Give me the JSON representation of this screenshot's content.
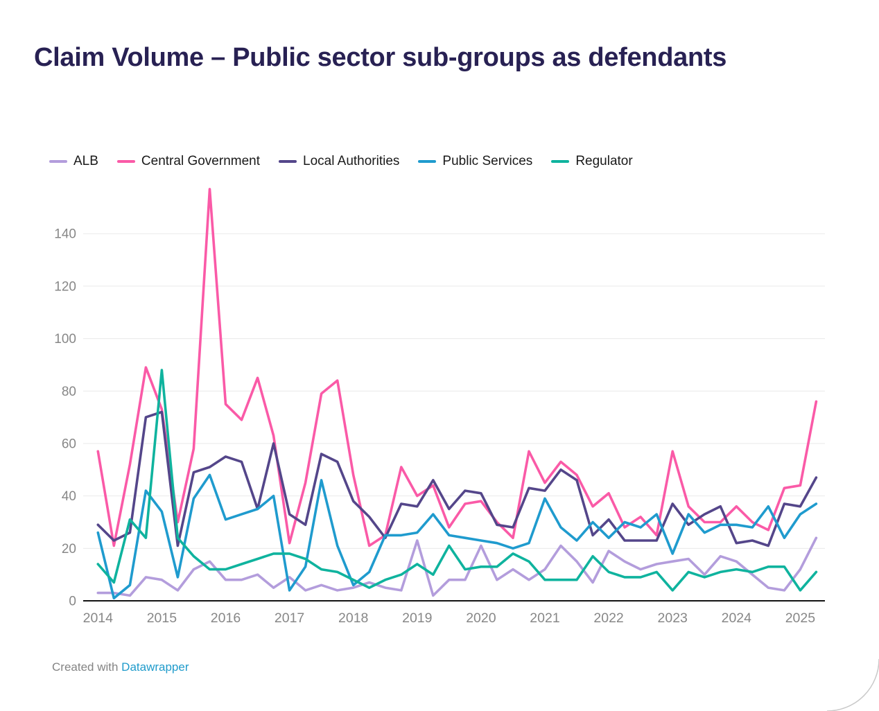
{
  "title": "Claim Volume – Public sector sub-groups as defendants",
  "footer": {
    "prefix": "Created with ",
    "link_label": "Datawrapper"
  },
  "colors": {
    "background": "#ffffff",
    "title_text": "#282153",
    "tick_text": "#878787",
    "gridline": "#e9e9e9",
    "axis_line": "#121212",
    "legend_text": "#1a1a1a",
    "footer_text": "#848484",
    "footer_link": "#1f9bcb",
    "corner_arc": "#c9c9c9"
  },
  "chart_data": {
    "type": "line",
    "title": "Claim Volume – Public sector sub-groups as defendants",
    "xlabel": "",
    "ylabel": "",
    "x_start": 2014.0,
    "x_step": 0.25,
    "x_ticks": [
      2014,
      2015,
      2016,
      2017,
      2018,
      2019,
      2020,
      2021,
      2022,
      2023,
      2024,
      2025
    ],
    "ylim": [
      0,
      160
    ],
    "yticks": [
      0,
      20,
      40,
      60,
      80,
      100,
      120,
      140
    ],
    "grid": "horizontal",
    "legend_position": "top",
    "series": [
      {
        "name": "ALB",
        "color": "#b39ddc",
        "values": [
          3,
          3,
          2,
          9,
          8,
          4,
          12,
          15,
          8,
          8,
          10,
          5,
          9,
          4,
          6,
          4,
          5,
          7,
          5,
          4,
          23,
          2,
          8,
          8,
          21,
          8,
          12,
          8,
          12,
          21,
          15,
          7,
          19,
          15,
          12,
          14,
          15,
          16,
          10,
          17,
          15,
          10,
          5,
          4,
          12,
          24
        ]
      },
      {
        "name": "Central Government",
        "color": "#fa5aa7",
        "values": [
          57,
          21,
          52,
          89,
          73,
          30,
          58,
          157,
          75,
          69,
          85,
          63,
          22,
          45,
          79,
          84,
          48,
          21,
          25,
          51,
          40,
          44,
          28,
          37,
          38,
          30,
          24,
          57,
          45,
          53,
          48,
          36,
          41,
          28,
          32,
          25,
          57,
          36,
          30,
          30,
          36,
          30,
          27,
          43,
          44,
          76
        ]
      },
      {
        "name": "Local Authorities",
        "color": "#54468a",
        "values": [
          29,
          23,
          26,
          70,
          72,
          21,
          49,
          51,
          55,
          53,
          35,
          60,
          33,
          29,
          56,
          53,
          38,
          32,
          24,
          37,
          36,
          46,
          35,
          42,
          41,
          29,
          28,
          43,
          42,
          50,
          46,
          25,
          31,
          23,
          23,
          23,
          37,
          29,
          33,
          36,
          22,
          23,
          21,
          37,
          36,
          47
        ]
      },
      {
        "name": "Public Services",
        "color": "#1f9bce",
        "values": [
          26,
          1,
          6,
          42,
          34,
          9,
          39,
          48,
          31,
          33,
          35,
          40,
          4,
          13,
          46,
          21,
          6,
          11,
          25,
          25,
          26,
          33,
          25,
          24,
          23,
          22,
          20,
          22,
          39,
          28,
          23,
          30,
          24,
          30,
          28,
          33,
          18,
          33,
          26,
          29,
          29,
          28,
          36,
          24,
          33,
          37
        ]
      },
      {
        "name": "Regulator",
        "color": "#0fb39e",
        "values": [
          14,
          7,
          31,
          24,
          88,
          24,
          17,
          12,
          12,
          14,
          16,
          18,
          18,
          16,
          12,
          11,
          8,
          5,
          8,
          10,
          14,
          10,
          21,
          12,
          13,
          13,
          18,
          15,
          8,
          8,
          8,
          17,
          11,
          9,
          9,
          11,
          4,
          11,
          9,
          11,
          12,
          11,
          13,
          13,
          4,
          11
        ]
      }
    ]
  }
}
